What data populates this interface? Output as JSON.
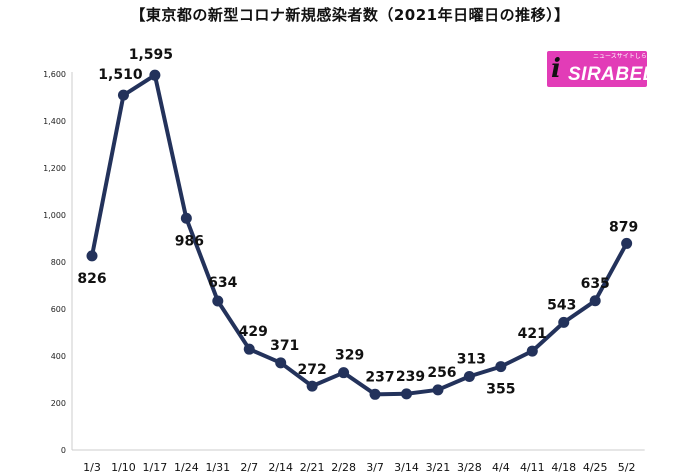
{
  "header": {
    "title": "【東京都の新型コロナ新規感染者数（2021年日曜日の推移）】"
  },
  "logo": {
    "mark": "i",
    "wordmark": "SIRABEE",
    "tagline": "ニュースサイトしらべぇ",
    "background": "#e23cb7"
  },
  "colors": {
    "line": "#23325b",
    "marker": "#23325b",
    "axis": "#cccccc"
  },
  "chart_data": {
    "type": "line",
    "title": "【東京都の新型コロナ新規感染者数（2021年日曜日の推移）】",
    "xlabel": "",
    "ylabel": "",
    "categories": [
      "1/3",
      "1/10",
      "1/17",
      "1/24",
      "1/31",
      "2/7",
      "2/14",
      "2/21",
      "2/28",
      "3/7",
      "3/14",
      "3/21",
      "3/28",
      "4/4",
      "4/11",
      "4/18",
      "4/25",
      "5/2"
    ],
    "series": [
      {
        "values": [
          826,
          1510,
          1595,
          986,
          634,
          429,
          371,
          272,
          329,
          237,
          239,
          256,
          313,
          355,
          421,
          543,
          635,
          879
        ]
      }
    ],
    "data_labels": [
      "826",
      "1,510",
      "1,595",
      "986",
      "634",
      "429",
      "371",
      "272",
      "329",
      "237",
      "239",
      "256",
      "313",
      "355",
      "421",
      "543",
      "635",
      "879"
    ],
    "yticks": [
      "0",
      "200",
      "400",
      "600",
      "800",
      "1,000",
      "1,200",
      "1,400",
      "1,600"
    ],
    "ylim": [
      0,
      1600
    ],
    "grid": false,
    "legend": "none"
  }
}
